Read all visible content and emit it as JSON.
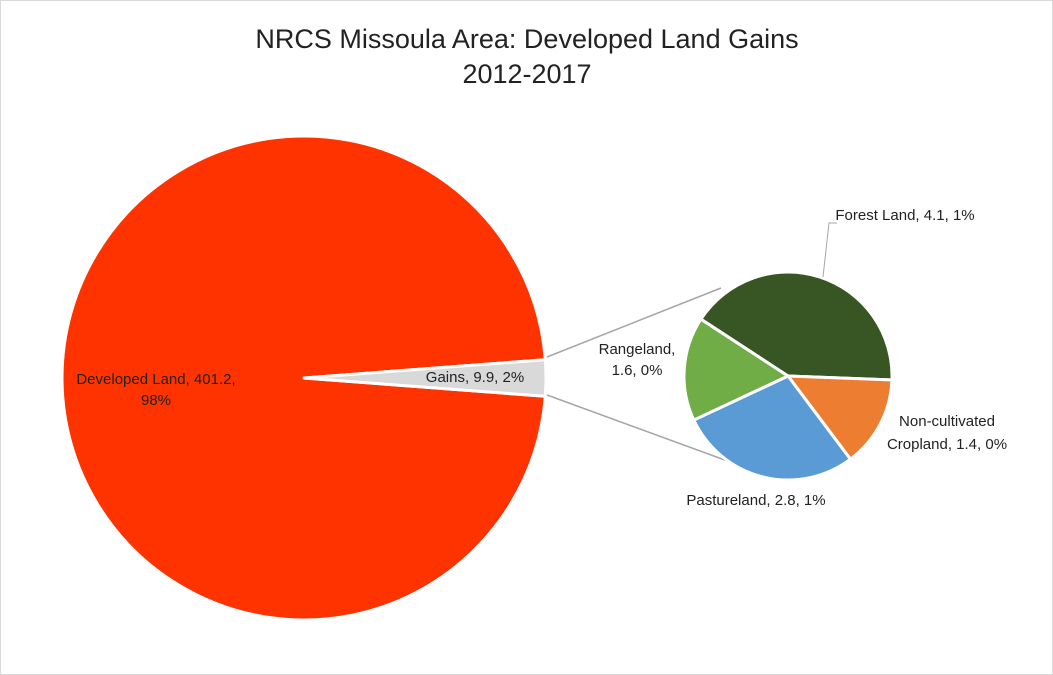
{
  "chart_data": {
    "type": "pie",
    "subtype": "bar-of-pie (pie of pie)",
    "title": "NRCS Missoula Area: Developed Land Gains",
    "subtitle": "2012-2017",
    "primary": {
      "slices": [
        {
          "label": "Developed Land",
          "value": 401.2,
          "percent": "98%",
          "color": "#ff3300"
        },
        {
          "label": "Gains",
          "value": 9.9,
          "percent": "2%",
          "color": "#d9d9d9"
        }
      ]
    },
    "secondary": {
      "slices": [
        {
          "label": "Forest Land",
          "value": 4.1,
          "percent": "1%",
          "color": "#375623"
        },
        {
          "label": "Non-cultivated Cropland",
          "value": 1.4,
          "percent": "0%",
          "color": "#ed7d31"
        },
        {
          "label": "Pastureland",
          "value": 2.8,
          "percent": "1%",
          "color": "#5b9bd5"
        },
        {
          "label": "Rangeland",
          "value": 1.6,
          "percent": "0%",
          "color": "#70ad47"
        }
      ]
    },
    "data_labels": {
      "developed": [
        "Developed Land, 401.2,",
        "98%"
      ],
      "gains": [
        "Gains, 9.9, 2%"
      ],
      "forest": [
        "Forest Land, 4.1, 1%"
      ],
      "cropland": [
        "Non-cultivated",
        "Cropland, 1.4, 0%"
      ],
      "pasture": [
        "Pastureland, 2.8, 1%"
      ],
      "range": [
        "Rangeland,",
        "1.6, 0%"
      ]
    },
    "legend": "none"
  }
}
